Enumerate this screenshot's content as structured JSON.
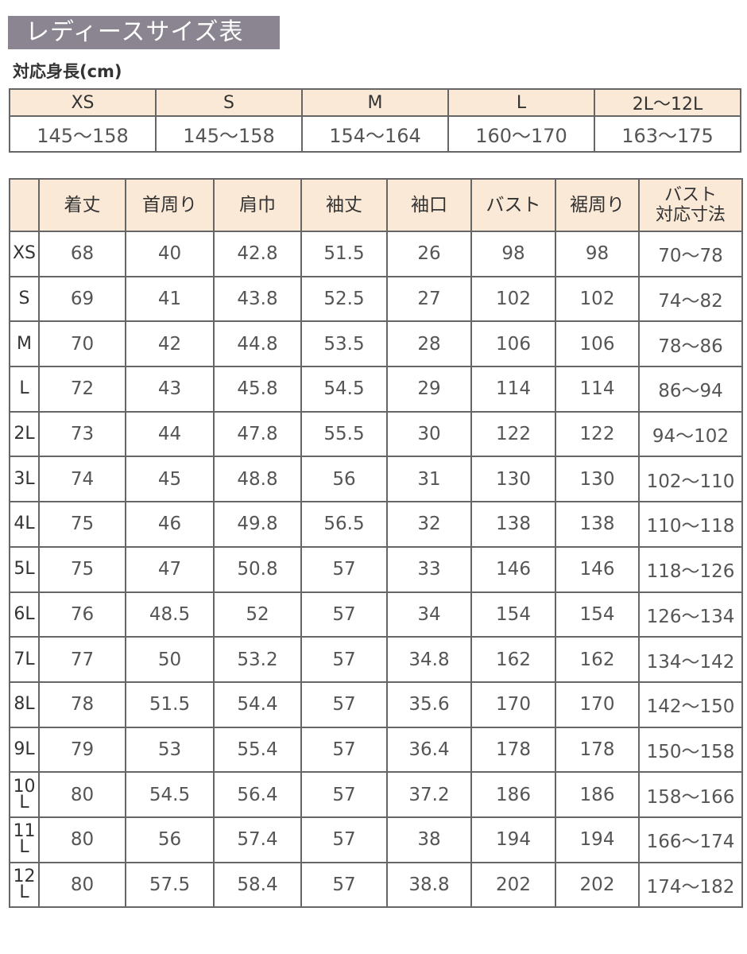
{
  "title": "レディースサイズ表",
  "height_table": {
    "label": "対応身長(cm)",
    "sizes": [
      "XS",
      "S",
      "M",
      "L",
      "2L～12L"
    ],
    "heights": [
      "145～158",
      "145～158",
      "154～164",
      "160～170",
      "163～175"
    ]
  },
  "size_table": {
    "headers": [
      "",
      "着丈",
      "首周り",
      "肩巾",
      "袖丈",
      "袖口",
      "バスト",
      "裾周り",
      "バスト\n対応寸法"
    ],
    "rows": [
      [
        "XS",
        "68",
        "40",
        "42.8",
        "51.5",
        "26",
        "98",
        "98",
        "70～78"
      ],
      [
        "S",
        "69",
        "41",
        "43.8",
        "52.5",
        "27",
        "102",
        "102",
        "74～82"
      ],
      [
        "M",
        "70",
        "42",
        "44.8",
        "53.5",
        "28",
        "106",
        "106",
        "78～86"
      ],
      [
        "L",
        "72",
        "43",
        "45.8",
        "54.5",
        "29",
        "114",
        "114",
        "86～94"
      ],
      [
        "2L",
        "73",
        "44",
        "47.8",
        "55.5",
        "30",
        "122",
        "122",
        "94～102"
      ],
      [
        "3L",
        "74",
        "45",
        "48.8",
        "56",
        "31",
        "130",
        "130",
        "102～110"
      ],
      [
        "4L",
        "75",
        "46",
        "49.8",
        "56.5",
        "32",
        "138",
        "138",
        "110～118"
      ],
      [
        "5L",
        "75",
        "47",
        "50.8",
        "57",
        "33",
        "146",
        "146",
        "118～126"
      ],
      [
        "6L",
        "76",
        "48.5",
        "52",
        "57",
        "34",
        "154",
        "154",
        "126～134"
      ],
      [
        "7L",
        "77",
        "50",
        "53.2",
        "57",
        "34.8",
        "162",
        "162",
        "134～142"
      ],
      [
        "8L",
        "78",
        "51.5",
        "54.4",
        "57",
        "35.6",
        "170",
        "170",
        "142～150"
      ],
      [
        "9L",
        "79",
        "53",
        "55.4",
        "57",
        "36.4",
        "178",
        "178",
        "150～158"
      ],
      [
        "10L",
        "80",
        "54.5",
        "56.4",
        "57",
        "37.2",
        "186",
        "186",
        "158～166"
      ],
      [
        "11L",
        "80",
        "56",
        "57.4",
        "57",
        "38",
        "194",
        "194",
        "166～174"
      ],
      [
        "12L",
        "80",
        "57.5",
        "58.4",
        "57",
        "38.8",
        "202",
        "202",
        "174～182"
      ]
    ]
  }
}
